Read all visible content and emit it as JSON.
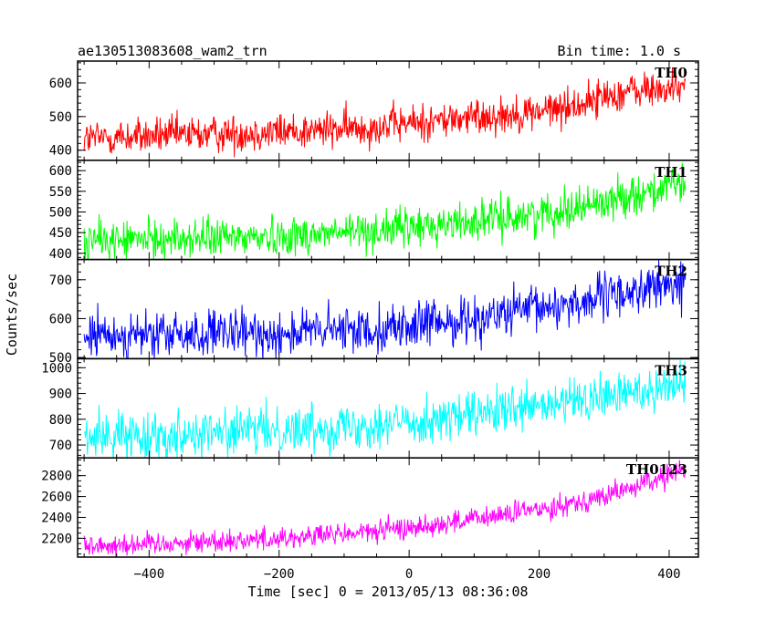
{
  "header": {
    "title": "ae130513083608_wam2_trn",
    "bin_time": "Bin time: 1.0 s"
  },
  "chart_data": {
    "type": "line",
    "xlabel": "Time [sec] 0 = 2013/05/13 08:36:08",
    "ylabel": "Counts/sec",
    "xlim": [
      -510,
      445
    ],
    "x_ticks": [
      -400,
      -200,
      0,
      200,
      400
    ],
    "x_minor_step": 50,
    "x_start": -500,
    "x_end": 425,
    "x_step": 1,
    "panels": [
      {
        "name": "TH0",
        "color": "#ff0000",
        "ylim": [
          370,
          665
        ],
        "y_ticks": [
          400,
          500,
          600
        ],
        "y_minor_step": 20,
        "noise": 28,
        "trend": [
          [
            -500,
            435
          ],
          [
            -350,
            445
          ],
          [
            -200,
            455
          ],
          [
            -100,
            462
          ],
          [
            0,
            480
          ],
          [
            100,
            498
          ],
          [
            200,
            515
          ],
          [
            260,
            535
          ],
          [
            300,
            560
          ],
          [
            340,
            575
          ],
          [
            425,
            585
          ]
        ]
      },
      {
        "name": "TH1",
        "color": "#00ff00",
        "ylim": [
          385,
          625
        ],
        "y_ticks": [
          400,
          450,
          500,
          550,
          600
        ],
        "y_minor_step": 10,
        "noise": 24,
        "trend": [
          [
            -500,
            430
          ],
          [
            -300,
            437
          ],
          [
            -200,
            442
          ],
          [
            -100,
            450
          ],
          [
            0,
            462
          ],
          [
            100,
            478
          ],
          [
            200,
            495
          ],
          [
            300,
            525
          ],
          [
            350,
            545
          ],
          [
            425,
            565
          ]
        ]
      },
      {
        "name": "TH2",
        "color": "#0000ff",
        "ylim": [
          497,
          752
        ],
        "y_ticks": [
          500,
          600,
          700
        ],
        "y_minor_step": 20,
        "noise": 30,
        "trend": [
          [
            -500,
            555
          ],
          [
            -300,
            558
          ],
          [
            -200,
            563
          ],
          [
            -100,
            570
          ],
          [
            0,
            580
          ],
          [
            100,
            600
          ],
          [
            200,
            625
          ],
          [
            300,
            655
          ],
          [
            360,
            675
          ],
          [
            425,
            690
          ]
        ]
      },
      {
        "name": "TH3",
        "color": "#00ffff",
        "ylim": [
          650,
          1035
        ],
        "y_ticks": [
          700,
          800,
          900,
          1000
        ],
        "y_minor_step": 20,
        "noise": 45,
        "trend": [
          [
            -500,
            730
          ],
          [
            -350,
            745
          ],
          [
            -200,
            760
          ],
          [
            -100,
            775
          ],
          [
            0,
            790
          ],
          [
            100,
            815
          ],
          [
            200,
            845
          ],
          [
            300,
            885
          ],
          [
            360,
            915
          ],
          [
            425,
            945
          ]
        ]
      },
      {
        "name": "TH0123",
        "color": "#ff00ff",
        "ylim": [
          2020,
          2970
        ],
        "y_ticks": [
          2200,
          2400,
          2600,
          2800
        ],
        "y_minor_step": 50,
        "noise": 55,
        "trend": [
          [
            -500,
            2130
          ],
          [
            -350,
            2160
          ],
          [
            -200,
            2200
          ],
          [
            -100,
            2240
          ],
          [
            0,
            2300
          ],
          [
            100,
            2380
          ],
          [
            200,
            2480
          ],
          [
            300,
            2600
          ],
          [
            360,
            2720
          ],
          [
            425,
            2860
          ]
        ]
      }
    ]
  }
}
